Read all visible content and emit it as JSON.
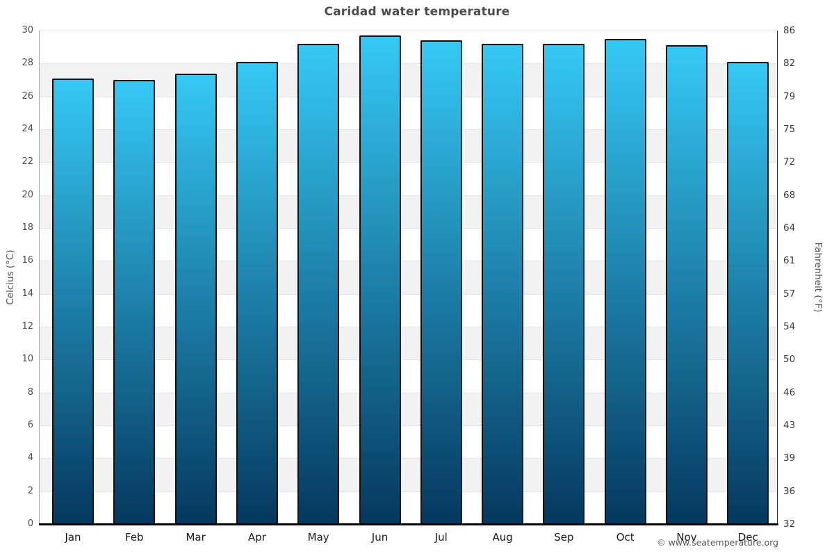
{
  "chart": {
    "title": "Caridad water temperature",
    "footer": "© www.seatemperature.org"
  },
  "chart_data": {
    "type": "bar",
    "title": "Caridad water temperature",
    "categories": [
      "Jan",
      "Feb",
      "Mar",
      "Apr",
      "May",
      "Jun",
      "Jul",
      "Aug",
      "Sep",
      "Oct",
      "Nov",
      "Dec"
    ],
    "values": [
      27.1,
      27.0,
      27.4,
      28.1,
      29.2,
      29.7,
      29.4,
      29.2,
      29.2,
      29.5,
      29.1,
      28.1
    ],
    "unit": "°C",
    "ylabel_left": "Celcius (°C)",
    "ylabel_right": "Fahrenheit (°F)",
    "ylim": [
      0,
      30
    ],
    "ytick_step": 2,
    "yticks_celsius": [
      0,
      2,
      4,
      6,
      8,
      10,
      12,
      14,
      16,
      18,
      20,
      22,
      24,
      26,
      28,
      30
    ],
    "yticks_fahrenheit": [
      "32",
      "36",
      "39",
      "43",
      "46",
      "50",
      "54",
      "57",
      "61",
      "64",
      "68",
      "72",
      "75",
      "79",
      "82",
      "86"
    ],
    "grid": "alternating horizontal bands every 2°C",
    "legend": "none"
  },
  "colors": {
    "background": "#ffffff",
    "bar_gradient_top": "#35c9f5",
    "bar_gradient_bottom": "#05385e",
    "bar_border": "#111111",
    "band_gray": "#f2f2f2",
    "gridline": "#e2e2e2",
    "axis_left": "#aaaaaa",
    "axis_right": "#222222",
    "axis_bottom": "#000000",
    "title_text": "#4d4d4d",
    "tick_text": "#4d4d4d",
    "month_text": "#1a1a1a",
    "footer_text": "#555555"
  }
}
